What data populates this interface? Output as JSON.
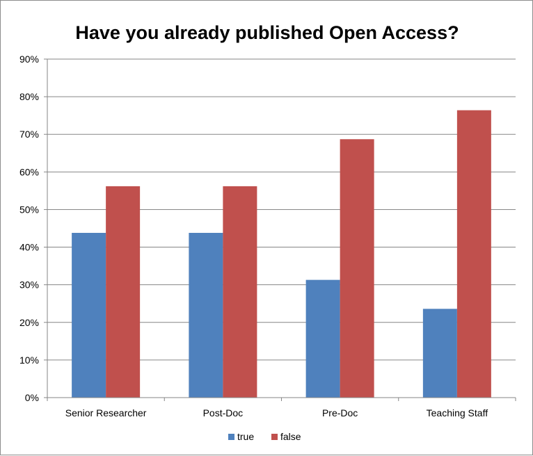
{
  "chart_data": {
    "type": "bar",
    "title": "Have you already published Open Access?",
    "categories": [
      "Senior Researcher",
      "Post-Doc",
      "Pre-Doc",
      "Teaching Staff"
    ],
    "series": [
      {
        "name": "true",
        "values": [
          43.8,
          43.8,
          31.3,
          23.6
        ],
        "color": "#4f81bd"
      },
      {
        "name": "false",
        "values": [
          56.2,
          56.2,
          68.7,
          76.4
        ],
        "color": "#c0504d"
      }
    ],
    "ylim": [
      0,
      90
    ],
    "yticks": [
      0,
      10,
      20,
      30,
      40,
      50,
      60,
      70,
      80,
      90
    ],
    "ytick_labels": [
      "0%",
      "10%",
      "20%",
      "30%",
      "40%",
      "50%",
      "60%",
      "70%",
      "80%",
      "90%"
    ],
    "grid": true,
    "legend_position": "bottom"
  }
}
